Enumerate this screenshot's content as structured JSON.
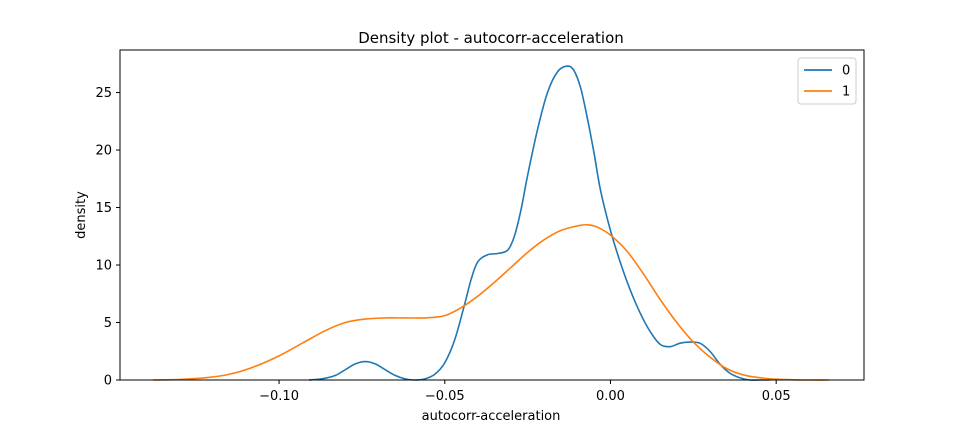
{
  "chart_data": {
    "type": "line",
    "title": "Density plot - autocorr-acceleration",
    "xlabel": "autocorr-acceleration",
    "ylabel": "density",
    "xlim": [
      -0.148,
      0.0765
    ],
    "ylim": [
      0,
      28.7
    ],
    "xticks": [
      -0.1,
      -0.05,
      0.0,
      0.05
    ],
    "xtick_labels": [
      "−0.10",
      "−0.05",
      "0.00",
      "0.05"
    ],
    "yticks": [
      0,
      5,
      10,
      15,
      20,
      25
    ],
    "ytick_labels": [
      "0",
      "5",
      "10",
      "15",
      "20",
      "25"
    ],
    "grid": false,
    "legend_position": "top-right",
    "series": [
      {
        "name": "0",
        "color": "#1f77b4",
        "x": [
          -0.091,
          -0.087,
          -0.083,
          -0.08,
          -0.077,
          -0.074,
          -0.071,
          -0.068,
          -0.065,
          -0.062,
          -0.059,
          -0.056,
          -0.053,
          -0.05,
          -0.047,
          -0.044,
          -0.042,
          -0.04,
          -0.037,
          -0.034,
          -0.031,
          -0.029,
          -0.027,
          -0.025,
          -0.022,
          -0.019,
          -0.016,
          -0.013,
          -0.011,
          -0.009,
          -0.007,
          -0.005,
          -0.003,
          0.0,
          0.003,
          0.006,
          0.009,
          0.012,
          0.015,
          0.018,
          0.021,
          0.024,
          0.027,
          0.03,
          0.033,
          0.036,
          0.039,
          0.042,
          0.045,
          0.048
        ],
        "values": [
          0.0,
          0.1,
          0.4,
          0.9,
          1.4,
          1.6,
          1.4,
          0.9,
          0.4,
          0.1,
          0.0,
          0.1,
          0.5,
          1.5,
          3.5,
          6.6,
          8.8,
          10.3,
          10.9,
          11.0,
          11.3,
          12.5,
          14.8,
          17.8,
          21.8,
          25.0,
          26.8,
          27.3,
          26.9,
          25.4,
          22.8,
          19.8,
          16.5,
          13.0,
          10.2,
          7.8,
          5.8,
          4.2,
          3.1,
          2.9,
          3.2,
          3.3,
          3.2,
          2.5,
          1.4,
          0.6,
          0.2,
          0.0,
          0.0,
          0.0
        ]
      },
      {
        "name": "1",
        "color": "#ff7f0e",
        "x": [
          -0.138,
          -0.13,
          -0.122,
          -0.115,
          -0.108,
          -0.1,
          -0.093,
          -0.086,
          -0.08,
          -0.074,
          -0.068,
          -0.062,
          -0.056,
          -0.05,
          -0.045,
          -0.04,
          -0.035,
          -0.03,
          -0.025,
          -0.02,
          -0.015,
          -0.01,
          -0.007,
          -0.004,
          0.0,
          0.005,
          0.01,
          0.015,
          0.02,
          0.025,
          0.03,
          0.035,
          0.04,
          0.045,
          0.05,
          0.055,
          0.06,
          0.066
        ],
        "values": [
          0.0,
          0.05,
          0.2,
          0.5,
          1.1,
          2.1,
          3.2,
          4.3,
          5.0,
          5.3,
          5.4,
          5.4,
          5.4,
          5.6,
          6.3,
          7.3,
          8.5,
          9.8,
          11.1,
          12.2,
          13.0,
          13.4,
          13.5,
          13.3,
          12.6,
          11.2,
          9.2,
          7.0,
          5.0,
          3.3,
          2.0,
          1.0,
          0.45,
          0.2,
          0.07,
          0.02,
          0.0,
          0.0
        ]
      }
    ]
  }
}
